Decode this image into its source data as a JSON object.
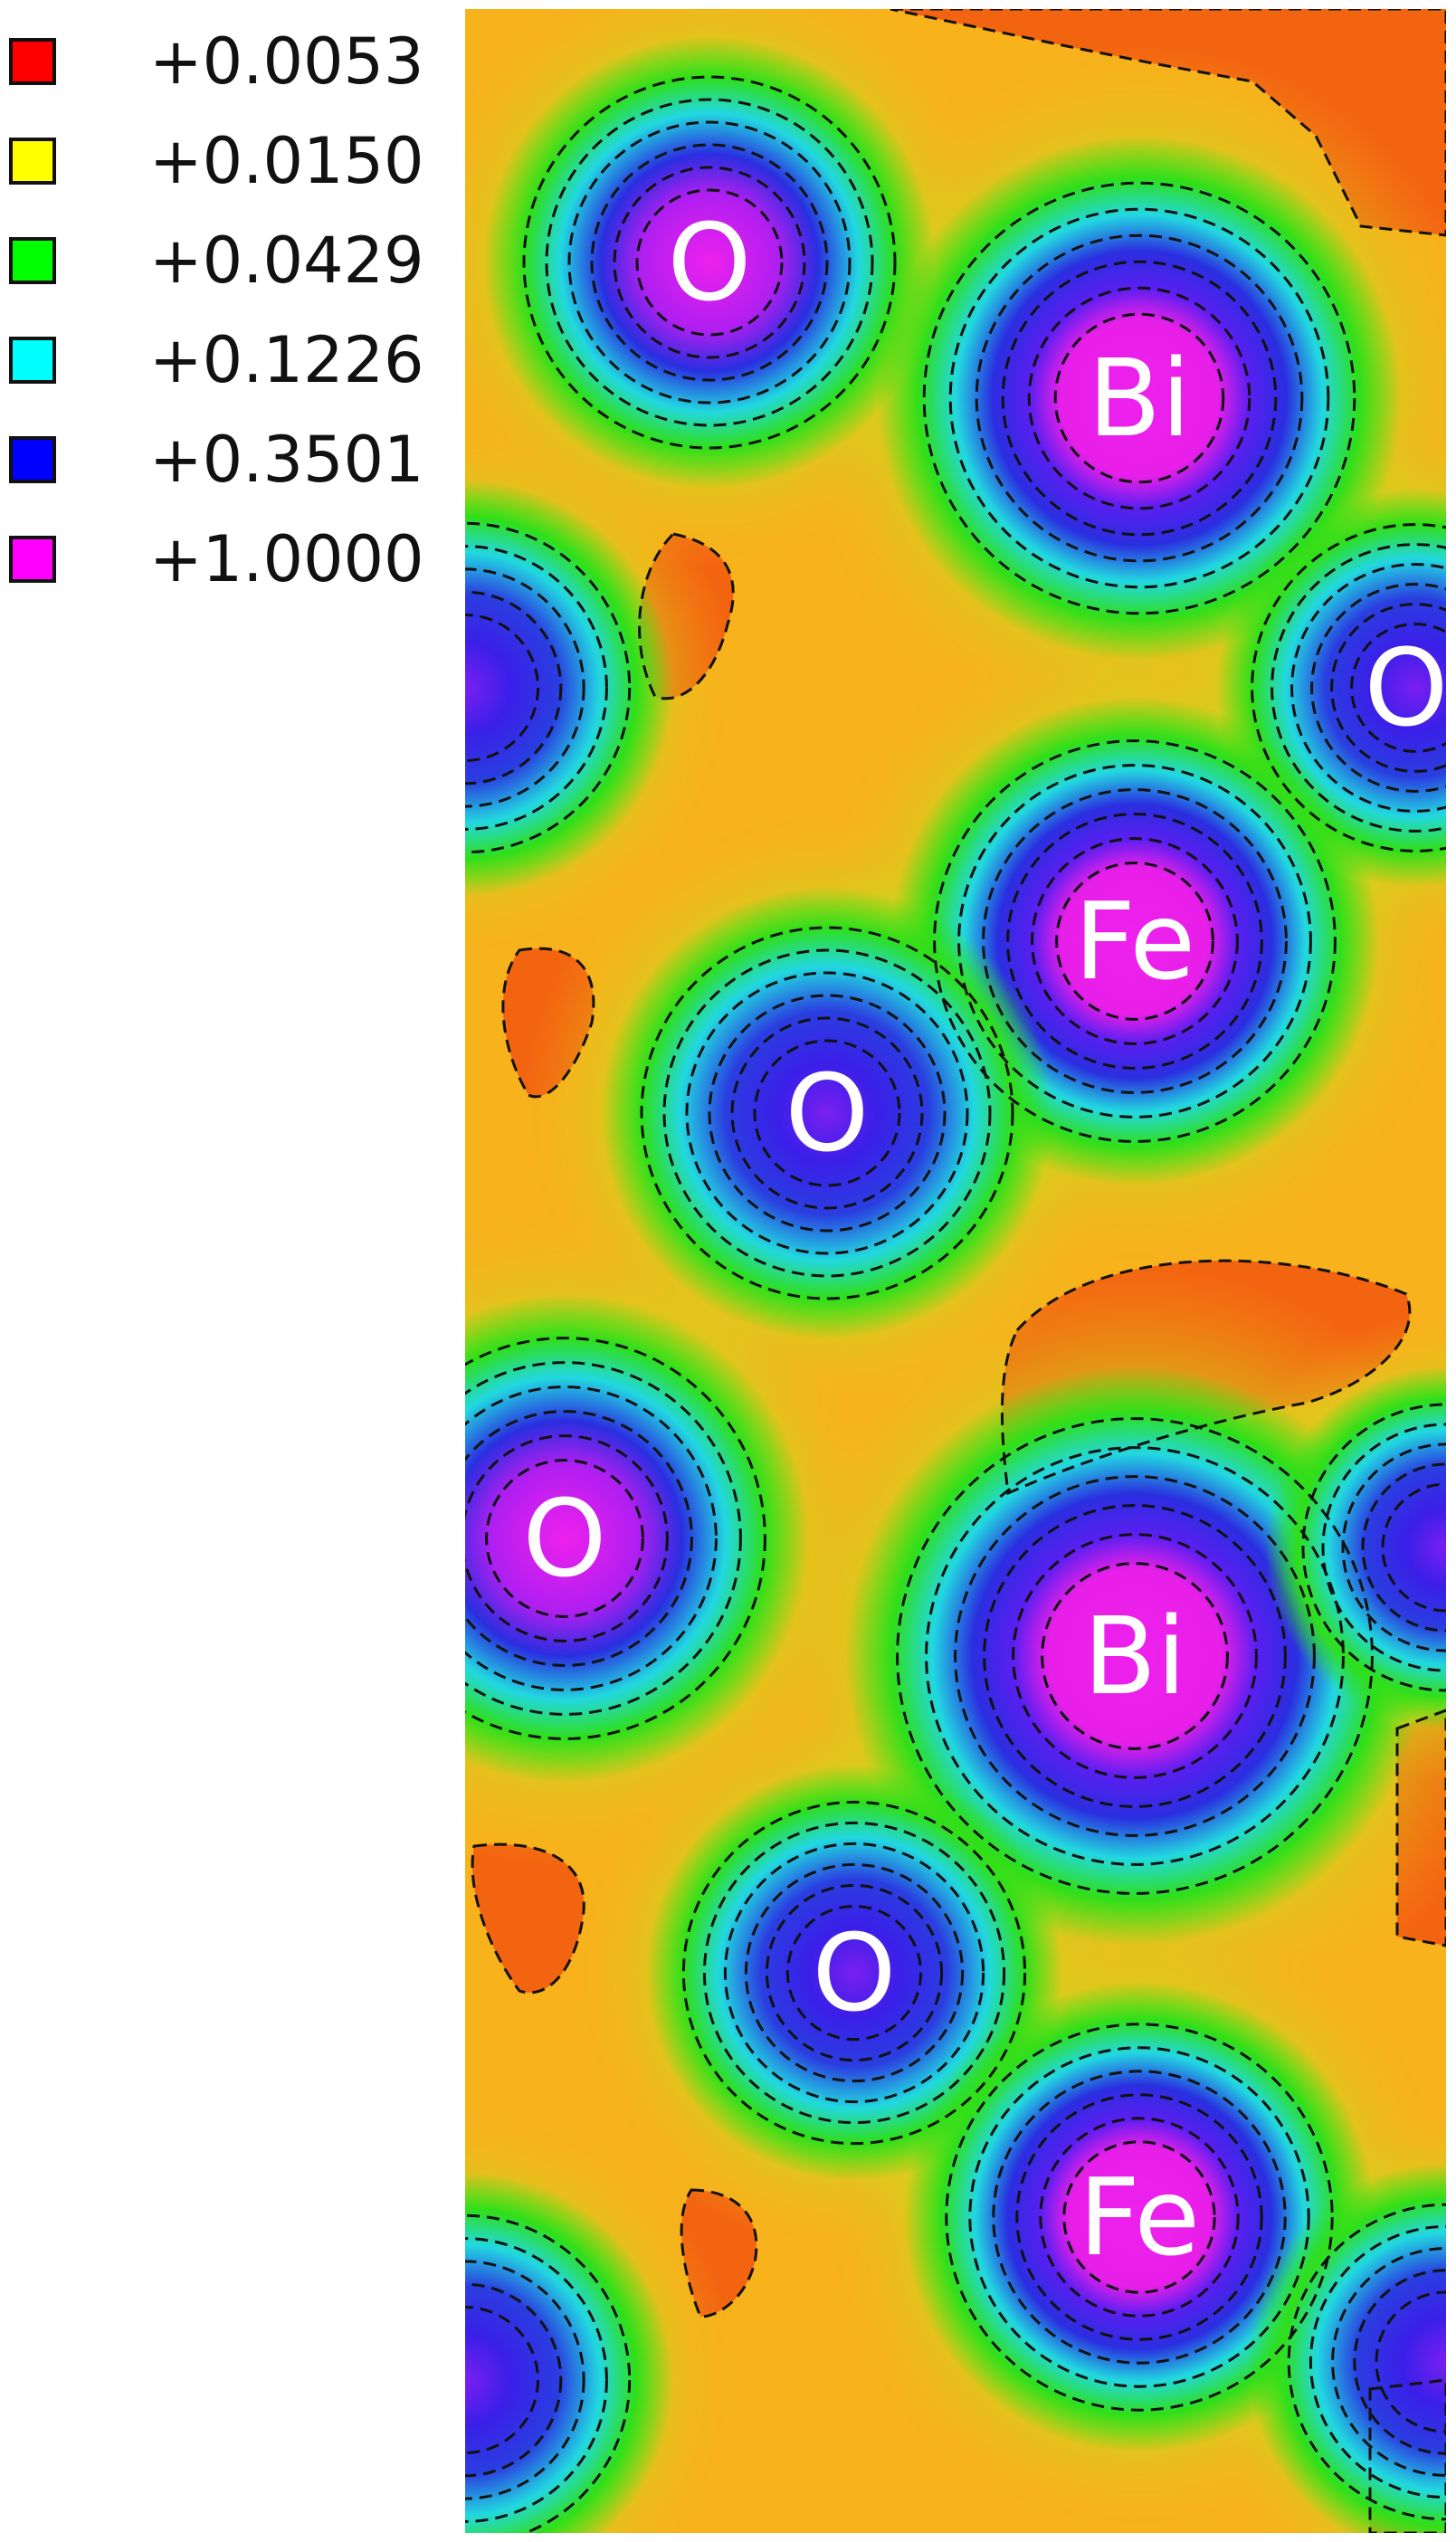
{
  "legend": {
    "items": [
      {
        "label": "+0.0053",
        "color": "#ff0000"
      },
      {
        "label": "+0.0150",
        "color": "#ffff00"
      },
      {
        "label": "+0.0429",
        "color": "#00ff00"
      },
      {
        "label": "+0.1226",
        "color": "#00ffff"
      },
      {
        "label": "+0.3501",
        "color": "#0000ff"
      },
      {
        "label": "+1.0000",
        "color": "#ff00ff"
      }
    ]
  },
  "map": {
    "colors": {
      "background": "#f7b21c",
      "low": "#f2560e",
      "mid": "#a6e81a",
      "green": "#2fdf1a",
      "cyan": "#22e6d6",
      "blue": "#2a1fe0",
      "core": "#ee20ee",
      "contour": "#111111"
    },
    "atoms": [
      {
        "label": "O",
        "element": "O"
      },
      {
        "label": "Bi",
        "element": "Bi"
      },
      {
        "label": "O",
        "element": "O"
      },
      {
        "label": "Fe",
        "element": "Fe"
      },
      {
        "label": "O",
        "element": "O"
      },
      {
        "label": "O",
        "element": "O"
      },
      {
        "label": "Bi",
        "element": "Bi"
      },
      {
        "label": "O",
        "element": "O"
      },
      {
        "label": "Fe",
        "element": "Fe"
      }
    ]
  }
}
